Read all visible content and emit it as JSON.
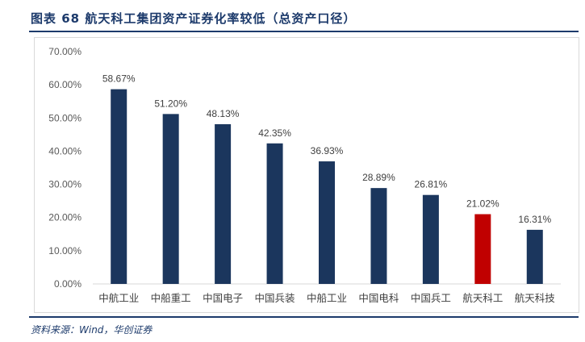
{
  "title": "图表 68   航天科工集团资产证券化率较低（总资产口径）",
  "source": "资料来源：Wind，华创证券",
  "colors": {
    "primary": "#1b365d",
    "highlight": "#c00000",
    "accent_rule": "#1c3a6b",
    "grid": "#d9d9d9"
  },
  "chart_data": {
    "type": "bar",
    "categories": [
      "中航工业",
      "中船重工",
      "中国电子",
      "中国兵装",
      "中船工业",
      "中国电科",
      "中国兵工",
      "航天科工",
      "航天科技"
    ],
    "values": [
      58.67,
      51.2,
      48.13,
      42.35,
      36.93,
      28.89,
      26.81,
      21.02,
      16.31
    ],
    "data_labels": [
      "58.67%",
      "51.20%",
      "48.13%",
      "42.35%",
      "36.93%",
      "28.89%",
      "26.81%",
      "21.02%",
      "16.31%"
    ],
    "highlight_category": "航天科工",
    "yticks": [
      "0.00%",
      "10.00%",
      "20.00%",
      "30.00%",
      "40.00%",
      "50.00%",
      "60.00%",
      "70.00%"
    ],
    "ylim": [
      0,
      70
    ],
    "grid": false,
    "legend": "none"
  }
}
